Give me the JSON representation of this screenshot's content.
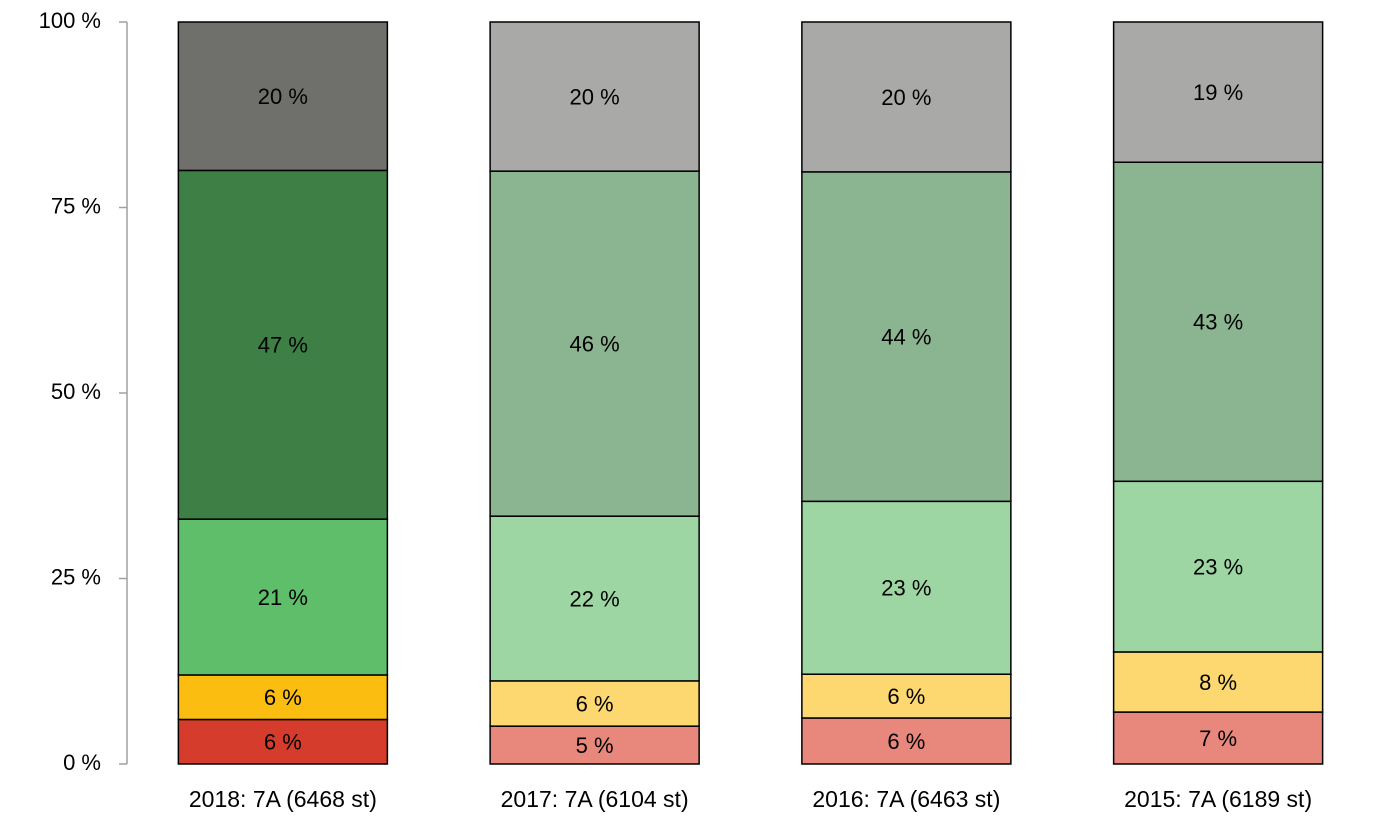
{
  "chart_data": {
    "type": "bar",
    "stacked": true,
    "categories": [
      "2018: 7A (6468 st)",
      "2017: 7A (6104 st)",
      "2016: 7A (6463 st)",
      "2015: 7A (6189 st)"
    ],
    "series": [
      {
        "colors": [
          "#d63c2b",
          "#e8877c",
          "#e8877c",
          "#e8877c"
        ],
        "values": [
          6,
          5.1,
          6.2,
          7.0
        ],
        "value_labels": [
          "6 %",
          "5 %",
          "6 %",
          "7 %"
        ]
      },
      {
        "colors": [
          "#fbbd0f",
          "#fdd770",
          "#fdd770",
          "#fdd770"
        ],
        "values": [
          6,
          6.1,
          5.9,
          8.1
        ],
        "value_labels": [
          "6 %",
          "6 %",
          "6 %",
          "8 %"
        ]
      },
      {
        "colors": [
          "#5ebe69",
          "#9dd6a3",
          "#9dd6a3",
          "#9dd6a3"
        ],
        "values": [
          21,
          22.2,
          23.3,
          23.0
        ],
        "value_labels": [
          "21 %",
          "22 %",
          "23 %",
          "23 %"
        ]
      },
      {
        "colors": [
          "#3d7f45",
          "#8bb490",
          "#8bb490",
          "#8bb490"
        ],
        "values": [
          47,
          46.5,
          44.4,
          43.0
        ],
        "value_labels": [
          "47 %",
          "46 %",
          "44 %",
          "43 %"
        ]
      },
      {
        "colors": [
          "#6f706b",
          "#a9a9a7",
          "#a9a9a7",
          "#a9a9a7"
        ],
        "values": [
          20,
          20.1,
          20.2,
          18.9
        ],
        "value_labels": [
          "20 %",
          "20 %",
          "20 %",
          "19 %"
        ]
      }
    ],
    "ylim": [
      0,
      100
    ],
    "yticks": [
      {
        "value": 0,
        "label": "0 %"
      },
      {
        "value": 25,
        "label": "25 %"
      },
      {
        "value": 50,
        "label": "50 %"
      },
      {
        "value": 75,
        "label": "75 %"
      },
      {
        "value": 100,
        "label": "100 %"
      }
    ],
    "grid": false
  }
}
